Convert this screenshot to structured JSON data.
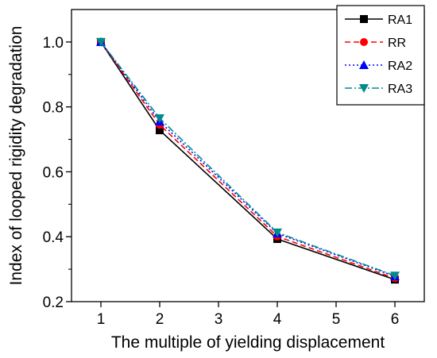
{
  "chart_data": {
    "type": "line",
    "title": "",
    "xlabel": "The multiple of yielding displacement",
    "ylabel": "Index of looped rigidity degradation",
    "x_ticks": [
      1,
      2,
      3,
      4,
      5,
      6
    ],
    "y_ticks": [
      0.2,
      0.4,
      0.6,
      0.8,
      1.0
    ],
    "y_tick_labels": [
      "0.2",
      "0.4",
      "0.6",
      "0.8",
      "1.0"
    ],
    "xlim": [
      0.5,
      6.5
    ],
    "ylim": [
      0.2,
      1.1
    ],
    "grid": false,
    "legend_position": "top-right",
    "series": [
      {
        "name": "RA1",
        "color": "#000000",
        "dash": "solid",
        "marker": "square",
        "x": [
          1,
          2,
          4,
          6
        ],
        "y": [
          1.0,
          0.728,
          0.393,
          0.268
        ]
      },
      {
        "name": "RR",
        "color": "#ff0000",
        "dash": "dashed",
        "marker": "circle",
        "x": [
          1,
          2,
          4,
          6
        ],
        "y": [
          1.0,
          0.745,
          0.401,
          0.272
        ]
      },
      {
        "name": "RA2",
        "color": "#0000ff",
        "dash": "dotted",
        "marker": "triangle-up",
        "x": [
          1,
          2,
          4,
          6
        ],
        "y": [
          1.0,
          0.755,
          0.41,
          0.278
        ]
      },
      {
        "name": "RA3",
        "color": "#008b8b",
        "dash": "dashdot",
        "marker": "triangle-down",
        "x": [
          1,
          2,
          4,
          6
        ],
        "y": [
          1.0,
          0.765,
          0.413,
          0.28
        ]
      }
    ]
  }
}
